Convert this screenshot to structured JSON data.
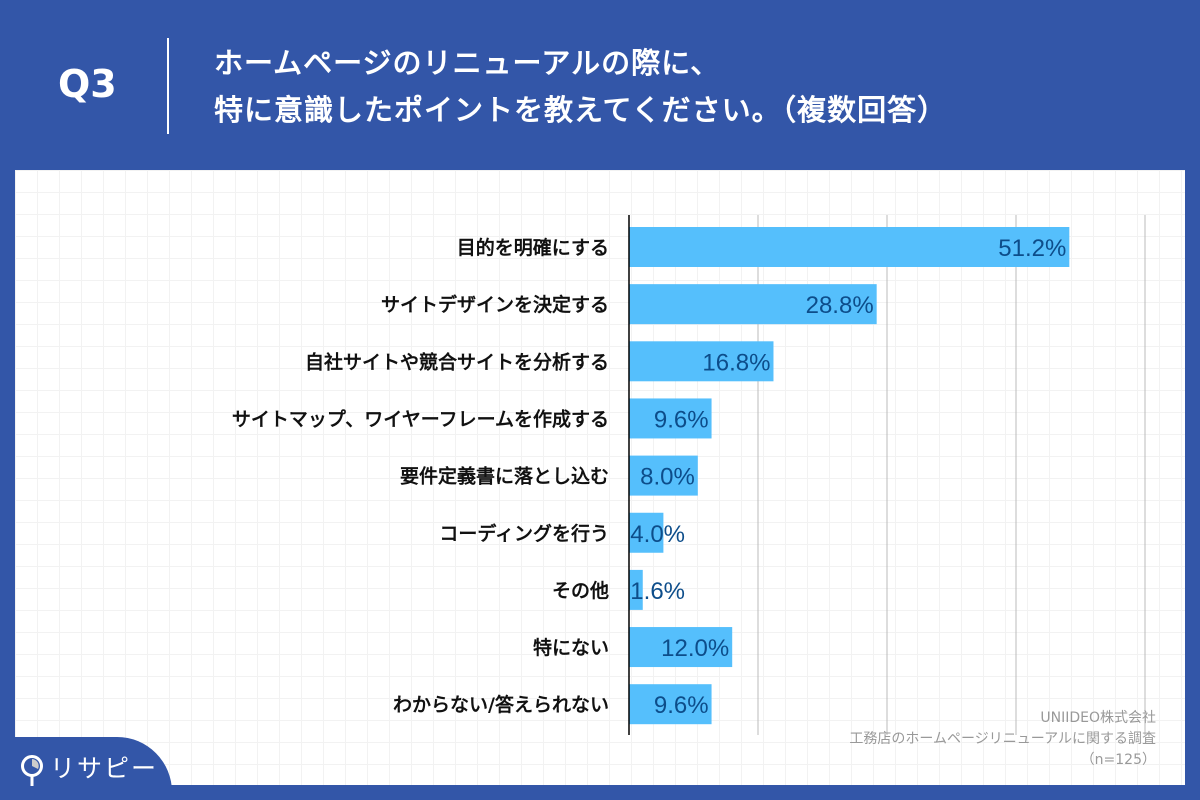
{
  "header": {
    "q": "Q3",
    "title_line1": "ホームページのリニューアルの際に、",
    "title_line2": "特に意識したポイントを教えてください。（複数回答）"
  },
  "source": {
    "line1": "UNIIDEO株式会社",
    "line2": "工務店のホームページリニューアルに関する調査",
    "line3": "（n=125）"
  },
  "logo": {
    "text": "リサピー"
  },
  "colors": {
    "background": "#3356a8",
    "bar": "#55bffc",
    "value_label": "#0d4d8a"
  },
  "chart_data": {
    "type": "bar",
    "orientation": "horizontal",
    "xlim": [
      0,
      60
    ],
    "grid_x": [
      15,
      30,
      45,
      60
    ],
    "unit": "%",
    "categories": [
      "目的を明確にする",
      "サイトデザインを決定する",
      "自社サイトや競合サイトを分析する",
      "サイトマップ、ワイヤーフレームを作成する",
      "要件定義書に落とし込む",
      "コーディングを行う",
      "その他",
      "特にない",
      "わからない/答えられない"
    ],
    "values": [
      51.2,
      28.8,
      16.8,
      9.6,
      8.0,
      4.0,
      1.6,
      12.0,
      9.6
    ],
    "labels": [
      "51.2%",
      "28.8%",
      "16.8%",
      "9.6%",
      "8.0%",
      "4.0%",
      "1.6%",
      "12.0%",
      "9.6%"
    ]
  }
}
